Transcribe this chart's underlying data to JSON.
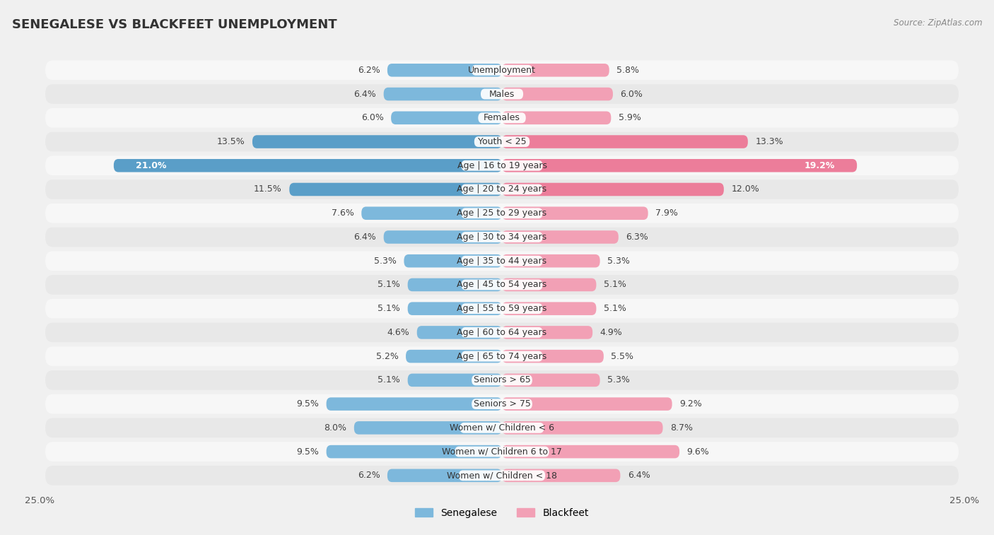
{
  "title": "SENEGALESE VS BLACKFEET UNEMPLOYMENT",
  "source": "Source: ZipAtlas.com",
  "categories": [
    "Unemployment",
    "Males",
    "Females",
    "Youth < 25",
    "Age | 16 to 19 years",
    "Age | 20 to 24 years",
    "Age | 25 to 29 years",
    "Age | 30 to 34 years",
    "Age | 35 to 44 years",
    "Age | 45 to 54 years",
    "Age | 55 to 59 years",
    "Age | 60 to 64 years",
    "Age | 65 to 74 years",
    "Seniors > 65",
    "Seniors > 75",
    "Women w/ Children < 6",
    "Women w/ Children 6 to 17",
    "Women w/ Children < 18"
  ],
  "senegalese": [
    6.2,
    6.4,
    6.0,
    13.5,
    21.0,
    11.5,
    7.6,
    6.4,
    5.3,
    5.1,
    5.1,
    4.6,
    5.2,
    5.1,
    9.5,
    8.0,
    9.5,
    6.2
  ],
  "blackfeet": [
    5.8,
    6.0,
    5.9,
    13.3,
    19.2,
    12.0,
    7.9,
    6.3,
    5.3,
    5.1,
    5.1,
    4.9,
    5.5,
    5.3,
    9.2,
    8.7,
    9.6,
    6.4
  ],
  "senegalese_color": "#7db8dc",
  "blackfeet_color": "#f2a0b5",
  "highlight_senegalese_color": "#5a9ec8",
  "highlight_blackfeet_color": "#ec7d9a",
  "highlight_rows": [
    3,
    4,
    5
  ],
  "xlim": 25.0,
  "background_color": "#f0f0f0",
  "row_light_color": "#f7f7f7",
  "row_dark_color": "#e8e8e8",
  "title_fontsize": 13,
  "label_fontsize": 9.0,
  "value_fontsize": 9.0
}
